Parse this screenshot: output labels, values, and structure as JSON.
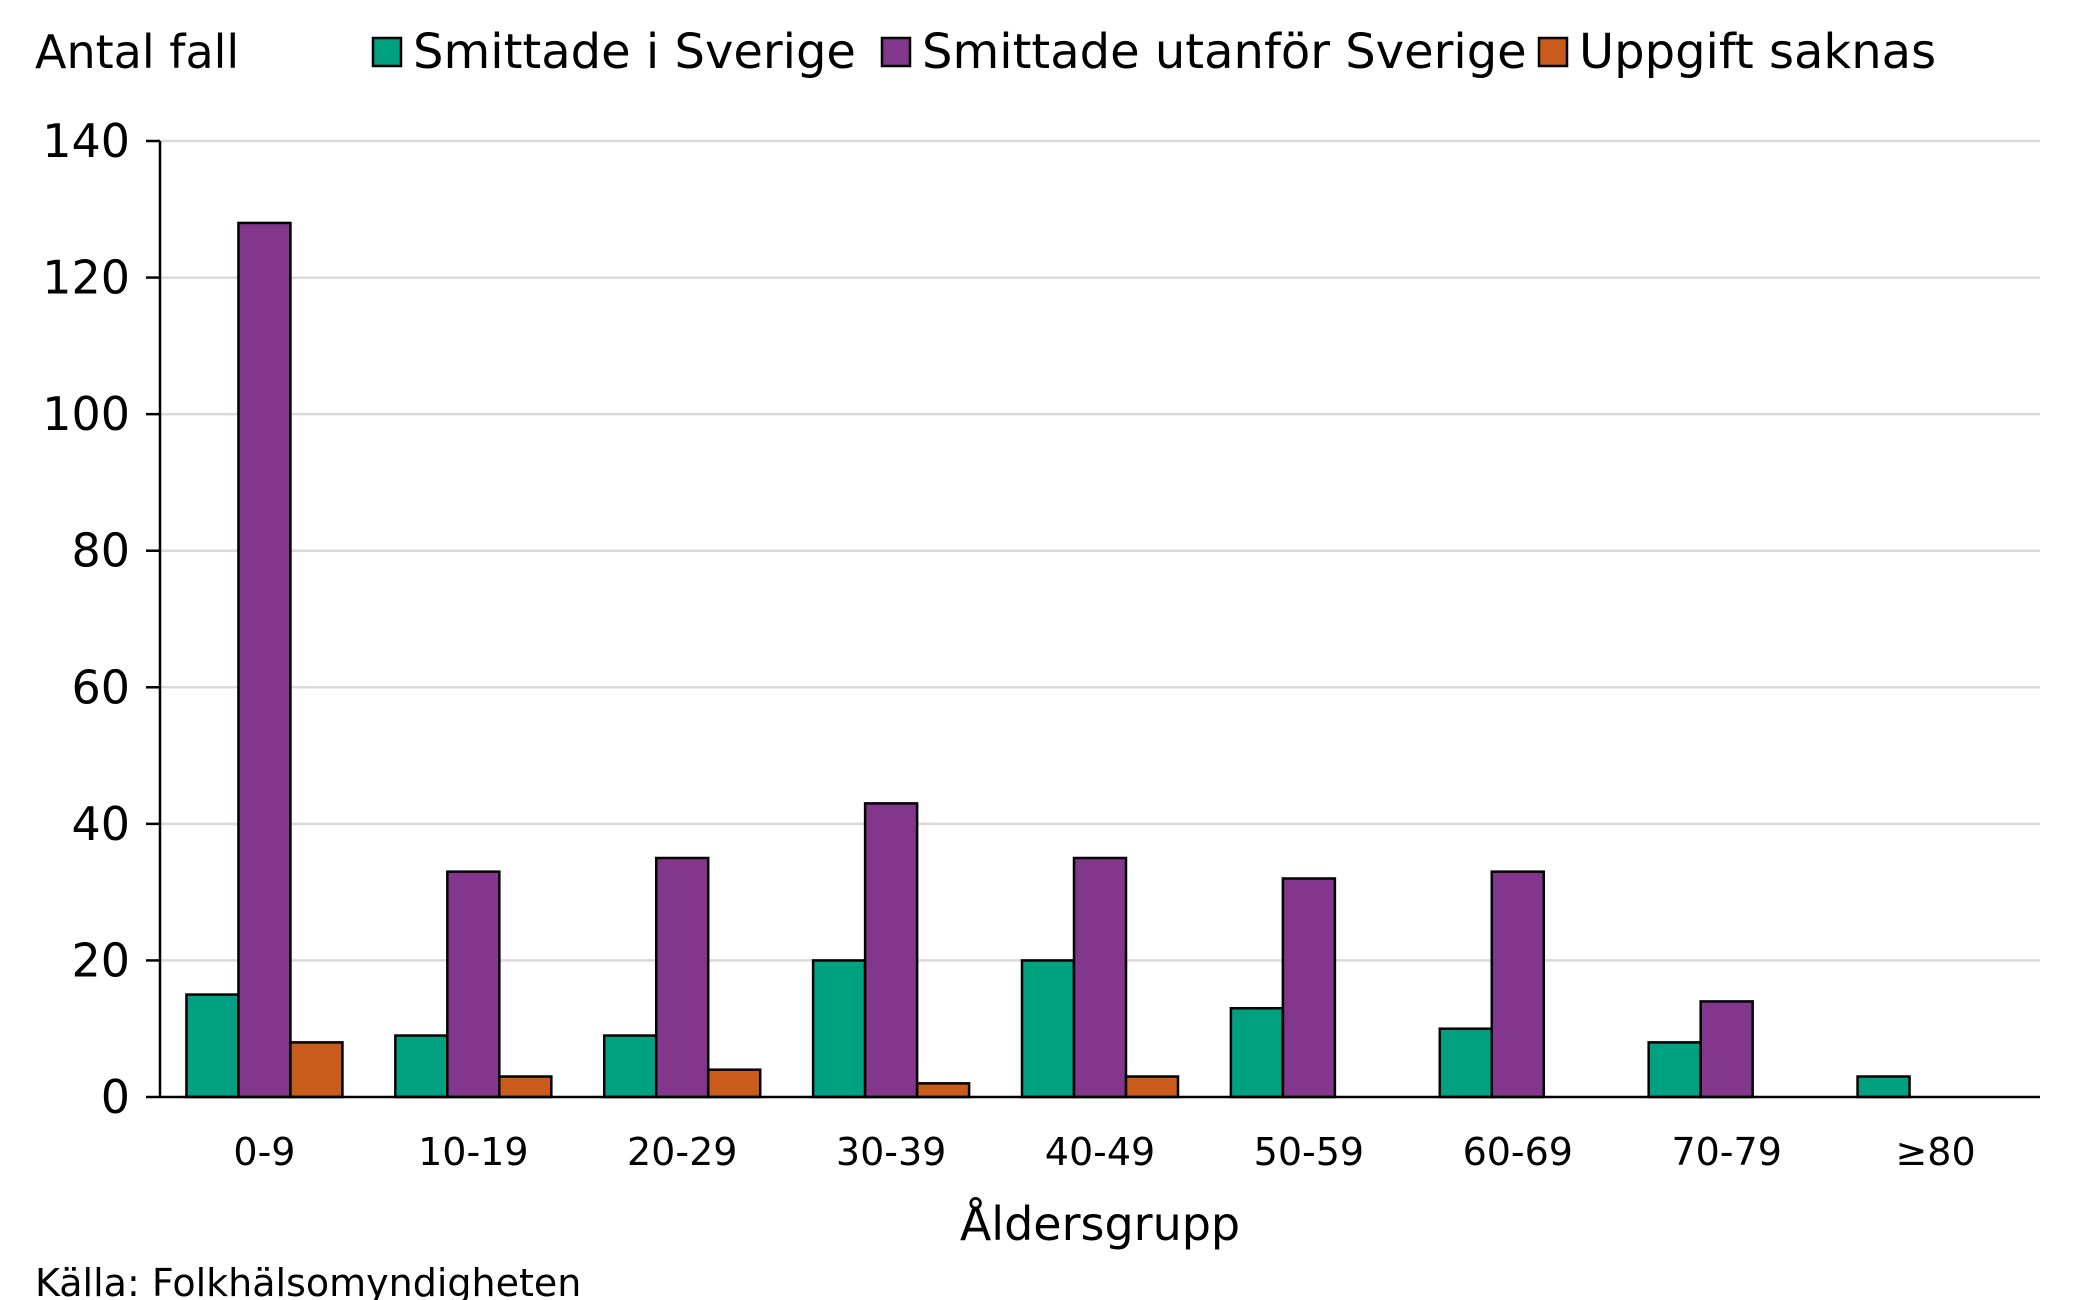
{
  "chart_data": {
    "type": "bar",
    "ylabel": "Antal fall",
    "xlabel": "Åldersgrupp",
    "source": "Källa: Folkhälsomyndigheten",
    "ylim": [
      0,
      140
    ],
    "yticks": [
      0,
      20,
      40,
      60,
      80,
      100,
      120,
      140
    ],
    "grid": true,
    "legend_position": "top",
    "categories": [
      "0-9",
      "10-19",
      "20-29",
      "30-39",
      "40-49",
      "50-59",
      "60-69",
      "70-79",
      "≥80"
    ],
    "series": [
      {
        "name": "Smittade i Sverige",
        "color": "#00a181",
        "values": [
          15,
          9,
          9,
          20,
          20,
          13,
          10,
          8,
          3
        ]
      },
      {
        "name": "Smittade utanför Sverige",
        "color": "#82368c",
        "values": [
          128,
          33,
          35,
          43,
          35,
          32,
          33,
          14,
          0
        ]
      },
      {
        "name": "Uppgift saknas",
        "color": "#c95b1c",
        "values": [
          8,
          3,
          4,
          2,
          3,
          0,
          0,
          0,
          0
        ]
      }
    ]
  }
}
